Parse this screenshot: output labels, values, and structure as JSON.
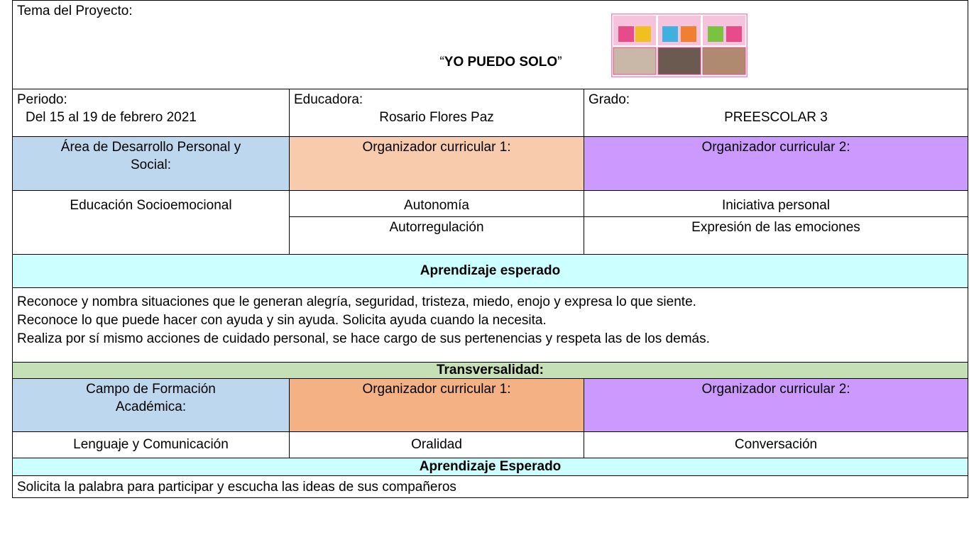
{
  "header": {
    "label": "Tema del Proyecto:",
    "quote_open": "“",
    "title": "YO PUEDO SOLO",
    "quote_close": "”"
  },
  "info": [
    {
      "label": "Periodo:",
      "value": "Del 15 al 19 de febrero 2021"
    },
    {
      "label": "Educadora:",
      "value": "Rosario Flores Paz"
    },
    {
      "label": "Grado:",
      "value": "PREESCOLAR 3"
    }
  ],
  "section1": {
    "area_lines": [
      "Área de Desarrollo Personal y",
      "Social:"
    ],
    "org1": "Organizador curricular 1:",
    "org2": "Organizador curricular 2:",
    "area_value": "Educación Socioemocional",
    "org1_values": [
      "Autonomía",
      "Autorregulación"
    ],
    "org2_values": [
      "Iniciativa personal",
      "Expresión de las emociones"
    ]
  },
  "learning1": {
    "heading": "Aprendizaje esperado",
    "lines": [
      "Reconoce y nombra situaciones que le generan alegría, seguridad, tristeza, miedo, enojo y expresa lo que siente.",
      "Reconoce lo que puede hacer con ayuda y sin ayuda. Solicita ayuda cuando la necesita.",
      "Realiza por sí mismo acciones de cuidado personal, se hace cargo de sus pertenencias y respeta las de los demás."
    ]
  },
  "transversal": {
    "heading": "Transversalidad:",
    "field_lines": [
      "Campo de Formación",
      "Académica:"
    ],
    "org1": "Organizador curricular 1:",
    "org2": "Organizador curricular 2:",
    "field_value": "Lenguaje y Comunicación",
    "org1_value": "Oralidad",
    "org2_value": "Conversación"
  },
  "learning2": {
    "heading": "Aprendizaje Esperado",
    "text": "Solicita la palabra para participar y escucha las ideas de sus compañeros"
  }
}
